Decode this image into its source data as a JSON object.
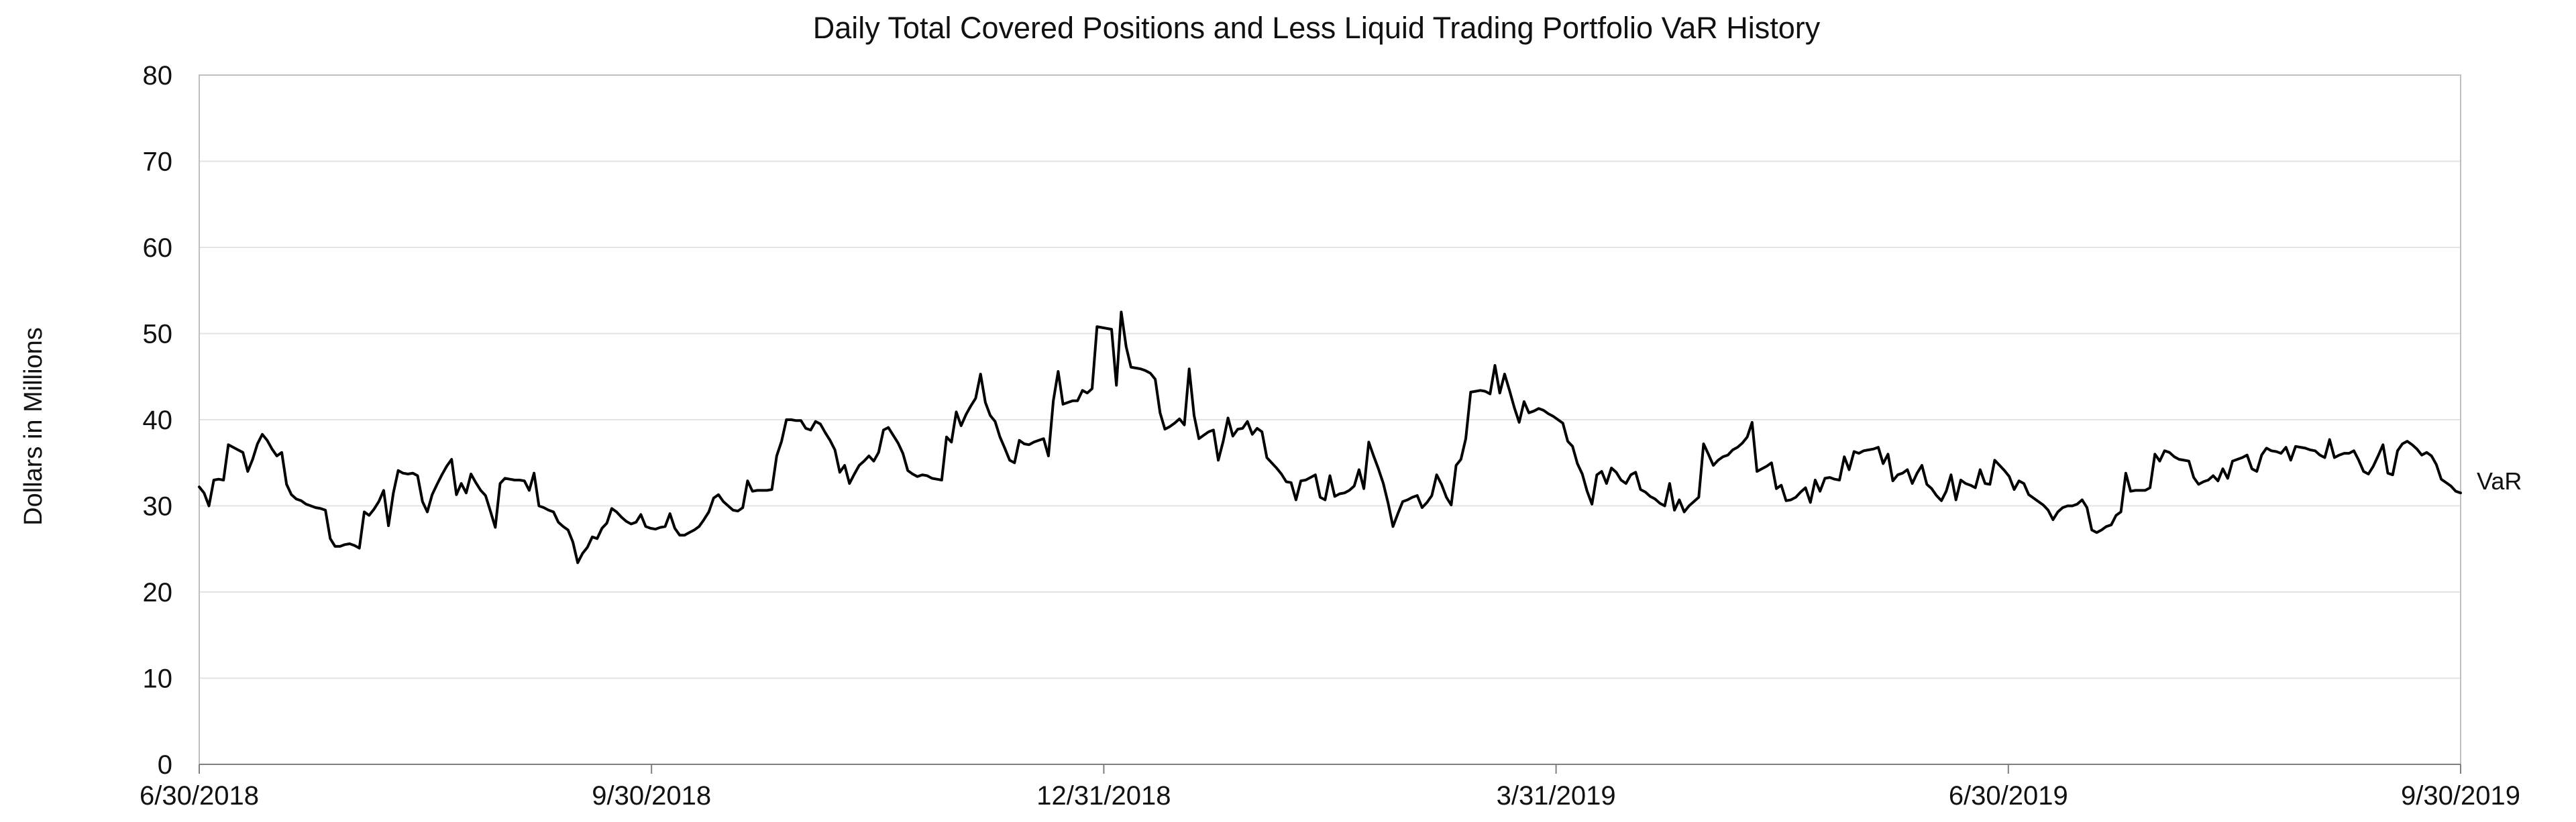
{
  "chart_data": {
    "type": "line",
    "title": "Daily Total Covered Positions and Less Liquid Trading Portfolio VaR History",
    "xlabel": "",
    "ylabel": "Dollars in Millions",
    "ylim": [
      0,
      80
    ],
    "y_ticks": [
      0,
      10,
      20,
      30,
      40,
      50,
      60,
      70,
      80
    ],
    "x_ticks": [
      "6/30/2018",
      "9/30/2018",
      "12/31/2018",
      "3/31/2019",
      "6/30/2019",
      "9/30/2019"
    ],
    "grid": true,
    "series": [
      {
        "name": "VaR",
        "color": "#000000",
        "values": [
          32.2,
          31.5,
          30.0,
          33.0,
          33.1,
          33.0,
          37.1,
          36.8,
          36.5,
          36.2,
          34.0,
          35.4,
          37.2,
          38.3,
          37.6,
          36.6,
          35.8,
          36.2,
          32.5,
          31.3,
          30.8,
          30.6,
          30.2,
          30.0,
          29.8,
          29.7,
          29.5,
          26.2,
          25.3,
          25.3,
          25.5,
          25.6,
          25.4,
          25.1,
          29.3,
          28.9,
          29.6,
          30.5,
          31.8,
          27.7,
          31.5,
          34.1,
          33.8,
          33.7,
          33.8,
          33.5,
          30.5,
          29.3,
          31.3,
          32.5,
          33.6,
          34.6,
          35.4,
          31.3,
          32.6,
          31.5,
          33.7,
          32.7,
          31.8,
          31.2,
          29.4,
          27.5,
          32.6,
          33.2,
          33.1,
          33.0,
          33.0,
          32.9,
          31.8,
          33.8,
          30.0,
          29.8,
          29.5,
          29.3,
          28.1,
          27.6,
          27.2,
          25.8,
          23.4,
          24.5,
          25.2,
          26.4,
          26.2,
          27.4,
          28.0,
          29.7,
          29.3,
          28.7,
          28.2,
          27.9,
          28.1,
          29.0,
          27.6,
          27.4,
          27.3,
          27.5,
          27.6,
          29.1,
          27.4,
          26.6,
          26.6,
          26.9,
          27.2,
          27.6,
          28.4,
          29.3,
          30.9,
          31.3,
          30.5,
          30.0,
          29.5,
          29.4,
          29.8,
          32.9,
          31.7,
          31.8,
          31.8,
          31.8,
          31.9,
          35.8,
          37.5,
          40.0,
          40.0,
          39.9,
          39.9,
          39.0,
          38.8,
          39.8,
          39.5,
          38.5,
          37.6,
          36.5,
          33.9,
          34.7,
          32.6,
          33.7,
          34.7,
          35.2,
          35.8,
          35.2,
          36.2,
          38.8,
          39.1,
          38.2,
          37.3,
          36.1,
          34.1,
          33.7,
          33.4,
          33.6,
          33.5,
          33.2,
          33.1,
          33.0,
          38.0,
          37.4,
          40.9,
          39.3,
          40.6,
          41.6,
          42.5,
          45.3,
          42.0,
          40.5,
          39.8,
          38.0,
          36.7,
          35.3,
          35.0,
          37.6,
          37.2,
          37.1,
          37.4,
          37.6,
          37.8,
          35.8,
          42.2,
          45.6,
          41.8,
          42.0,
          42.2,
          42.2,
          43.4,
          43.1,
          43.6,
          50.8,
          50.7,
          50.6,
          50.5,
          44.0,
          52.5,
          48.5,
          46.1,
          46.0,
          45.9,
          45.7,
          45.4,
          44.7,
          40.8,
          38.9,
          39.2,
          39.6,
          40.1,
          39.4,
          45.9,
          40.5,
          37.8,
          38.2,
          38.6,
          38.8,
          35.3,
          37.5,
          40.2,
          38.1,
          38.9,
          39.0,
          39.8,
          38.3,
          39.0,
          38.6,
          35.6,
          35.0,
          34.4,
          33.7,
          32.8,
          32.7,
          30.7,
          32.9,
          33.0,
          33.3,
          33.6,
          31.0,
          30.7,
          33.5,
          31.1,
          31.4,
          31.5,
          31.8,
          32.3,
          34.2,
          32.0,
          37.4,
          35.8,
          34.3,
          32.6,
          30.3,
          27.6,
          29.1,
          30.5,
          30.7,
          31.0,
          31.2,
          29.8,
          30.4,
          31.2,
          33.6,
          32.5,
          31.0,
          30.1,
          34.7,
          35.4,
          37.8,
          43.2,
          43.3,
          43.4,
          43.3,
          43.0,
          46.3,
          43.1,
          45.3,
          43.4,
          41.4,
          39.7,
          42.1,
          40.8,
          41.0,
          41.3,
          41.1,
          40.7,
          40.4,
          40.0,
          39.6,
          37.5,
          36.9,
          34.9,
          33.7,
          31.7,
          30.2,
          33.6,
          34.0,
          32.6,
          34.4,
          33.9,
          33.0,
          32.6,
          33.6,
          33.9,
          31.9,
          31.6,
          31.1,
          30.8,
          30.3,
          30.0,
          32.6,
          29.5,
          30.7,
          29.3,
          30.0,
          30.5,
          31.0,
          37.2,
          36.0,
          34.7,
          35.3,
          35.7,
          35.9,
          36.5,
          36.8,
          37.3,
          38.0,
          39.7,
          34.0,
          34.3,
          34.6,
          35.0,
          32.0,
          32.4,
          30.6,
          30.7,
          31.0,
          31.6,
          32.1,
          30.4,
          33.0,
          31.7,
          33.2,
          33.3,
          33.1,
          33.0,
          35.7,
          34.2,
          36.3,
          36.1,
          36.4,
          36.5,
          36.6,
          36.8,
          34.9,
          36.0,
          32.9,
          33.6,
          33.8,
          34.2,
          32.6,
          33.8,
          34.7,
          32.5,
          32.0,
          31.2,
          30.6,
          31.7,
          33.6,
          30.7,
          33.0,
          32.6,
          32.4,
          32.1,
          34.2,
          32.6,
          32.5,
          35.3,
          34.7,
          34.1,
          33.4,
          31.9,
          32.9,
          32.6,
          31.3,
          30.9,
          30.5,
          30.1,
          29.5,
          28.4,
          29.3,
          29.8,
          30.0,
          30.0,
          30.2,
          30.7,
          29.8,
          27.2,
          26.9,
          27.2,
          27.6,
          27.8,
          28.9,
          29.3,
          33.8,
          31.7,
          31.8,
          31.8,
          31.8,
          32.1,
          36.0,
          35.2,
          36.4,
          36.2,
          35.7,
          35.4,
          35.3,
          35.2,
          33.3,
          32.5,
          32.8,
          33.0,
          33.5,
          32.9,
          34.3,
          33.2,
          35.2,
          35.4,
          35.6,
          35.9,
          34.3,
          34.0,
          35.9,
          36.7,
          36.4,
          36.3,
          36.1,
          36.8,
          35.3,
          36.9,
          36.8,
          36.7,
          36.5,
          36.4,
          35.9,
          35.6,
          37.7,
          35.6,
          35.9,
          36.1,
          36.1,
          36.4,
          35.3,
          34.0,
          33.7,
          34.6,
          35.8,
          37.1,
          33.8,
          33.6,
          36.4,
          37.2,
          37.5,
          37.1,
          36.6,
          35.9,
          36.2,
          35.8,
          34.8,
          33.1,
          32.7,
          32.3,
          31.7,
          31.5
        ]
      }
    ]
  }
}
